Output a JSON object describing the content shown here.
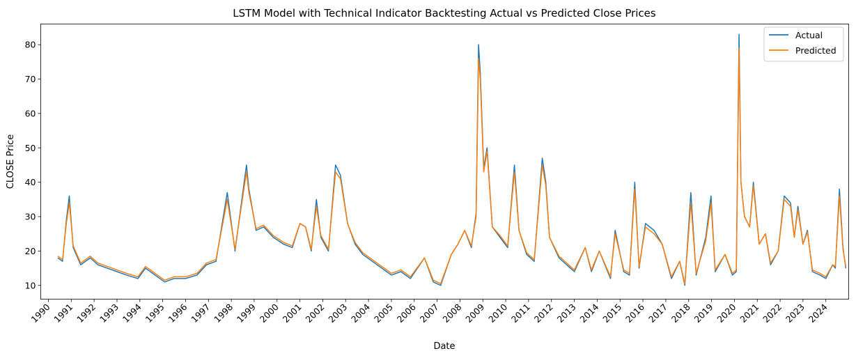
{
  "chart_data": {
    "type": "line",
    "title": "LSTM Model with Technical Indicator Backtesting Actual vs Predicted Close Prices",
    "xlabel": "Date",
    "ylabel": "CLOSE Price",
    "x_ticks": [
      "1990",
      "1991",
      "1992",
      "1993",
      "1994",
      "1995",
      "1996",
      "1997",
      "1998",
      "1999",
      "2000",
      "2001",
      "2002",
      "2003",
      "2004",
      "2005",
      "2006",
      "2007",
      "2008",
      "2009",
      "2010",
      "2011",
      "2012",
      "2013",
      "2014",
      "2015",
      "2016",
      "2017",
      "2018",
      "2019",
      "2020",
      "2021",
      "2022",
      "2023",
      "2024"
    ],
    "y_ticks": [
      10,
      20,
      30,
      40,
      50,
      60,
      70,
      80
    ],
    "xlim": [
      "1989-09-01",
      "2024-12-31"
    ],
    "ylim": [
      6,
      86
    ],
    "grid": false,
    "legend_position": "top-right",
    "x": [
      "1990-06-01",
      "1990-08-15",
      "1990-10-15",
      "1990-12-01",
      "1991-02-01",
      "1991-06-01",
      "1991-11-01",
      "1992-03-01",
      "1992-08-01",
      "1993-01-01",
      "1993-06-01",
      "1993-12-01",
      "1994-04-01",
      "1994-09-01",
      "1995-02-01",
      "1995-07-01",
      "1996-01-01",
      "1996-07-01",
      "1996-12-01",
      "1997-05-01",
      "1997-10-28",
      "1998-03-01",
      "1998-08-31",
      "1998-10-08",
      "1999-02-01",
      "1999-06-01",
      "1999-11-01",
      "2000-04-14",
      "2000-09-01",
      "2001-01-01",
      "2001-04-01",
      "2001-07-01",
      "2001-09-21",
      "2001-12-01",
      "2002-04-01",
      "2002-07-24",
      "2002-10-10",
      "2003-02-01",
      "2003-06-01",
      "2003-10-01",
      "2004-03-01",
      "2004-08-01",
      "2005-01-01",
      "2005-06-01",
      "2005-11-01",
      "2006-06-13",
      "2006-11-01",
      "2007-02-27",
      "2007-08-16",
      "2007-12-01",
      "2008-03-17",
      "2008-07-01",
      "2008-09-15",
      "2008-10-24",
      "2008-11-20",
      "2009-01-15",
      "2009-03-09",
      "2009-06-01",
      "2009-10-01",
      "2010-02-01",
      "2010-05-20",
      "2010-08-01",
      "2010-12-01",
      "2011-04-01",
      "2011-08-08",
      "2011-10-03",
      "2011-12-01",
      "2012-05-01",
      "2012-09-01",
      "2013-01-01",
      "2013-06-24",
      "2013-10-01",
      "2014-02-03",
      "2014-08-01",
      "2014-10-15",
      "2015-03-01",
      "2015-06-01",
      "2015-08-24",
      "2015-11-01",
      "2016-02-11",
      "2016-06-27",
      "2016-11-04",
      "2017-04-01",
      "2017-08-10",
      "2017-11-01",
      "2018-02-05",
      "2018-05-01",
      "2018-10-01",
      "2018-12-24",
      "2019-03-01",
      "2019-08-05",
      "2019-12-01",
      "2020-02-01",
      "2020-03-16",
      "2020-04-15",
      "2020-06-11",
      "2020-09-01",
      "2020-10-30",
      "2021-02-01",
      "2021-05-12",
      "2021-08-01",
      "2021-12-01",
      "2022-03-07",
      "2022-06-16",
      "2022-08-15",
      "2022-10-12",
      "2023-01-01",
      "2023-03-13",
      "2023-06-01",
      "2023-10-01",
      "2024-01-01",
      "2024-04-19",
      "2024-06-01",
      "2024-08-05",
      "2024-10-01",
      "2024-11-15"
    ],
    "series": [
      {
        "name": "Actual",
        "color": "#1f77b4",
        "values": [
          18,
          17,
          29,
          36,
          21,
          16,
          18,
          16,
          15,
          14,
          13,
          12,
          15,
          13,
          11,
          12,
          12,
          13,
          16,
          17,
          37,
          20,
          45,
          38,
          26,
          27,
          24,
          22,
          21,
          28,
          27,
          20,
          35,
          24,
          20,
          45,
          42,
          28,
          22,
          19,
          17,
          15,
          13,
          14,
          12,
          18,
          11,
          10,
          19,
          22,
          26,
          21,
          31,
          80,
          72,
          44,
          50,
          27,
          24,
          21,
          45,
          26,
          19,
          17,
          47,
          40,
          24,
          18,
          16,
          14,
          21,
          14,
          20,
          12,
          26,
          14,
          13,
          40,
          15,
          28,
          26,
          22,
          12,
          17,
          10,
          37,
          13,
          24,
          36,
          14,
          19,
          13,
          14,
          83,
          40,
          30,
          27,
          40,
          22,
          25,
          16,
          20,
          36,
          34,
          24,
          33,
          22,
          26,
          14,
          13,
          12,
          16,
          15,
          38,
          21,
          15
        ]
      },
      {
        "name": "Predicted",
        "color": "#ff7f0e",
        "values": [
          18.5,
          17.5,
          28,
          34,
          21.5,
          16.5,
          18.5,
          16.5,
          15.5,
          14.5,
          13.5,
          12.5,
          15.5,
          13.5,
          11.5,
          12.5,
          12.5,
          13.5,
          16.5,
          17.5,
          35,
          20.5,
          43,
          37,
          26.5,
          27.5,
          24.5,
          22.5,
          21.5,
          28,
          27,
          20.5,
          33,
          24.5,
          20.5,
          43,
          41,
          28,
          22.5,
          19.5,
          17.5,
          15.5,
          13.5,
          14.5,
          12.5,
          18,
          11.5,
          10.5,
          19,
          22,
          26,
          21.5,
          30,
          76,
          70,
          43,
          49,
          27,
          24.5,
          21.5,
          43,
          26,
          19.5,
          17.5,
          45,
          39,
          24,
          18.5,
          16.5,
          14.5,
          21,
          14.5,
          20,
          12.5,
          25,
          14.5,
          13.5,
          38,
          15.5,
          27,
          25,
          22,
          12.5,
          17,
          10.5,
          34,
          13.5,
          23,
          34,
          14.5,
          19,
          13.5,
          14.5,
          79,
          40,
          30,
          27,
          39,
          22,
          25,
          16.5,
          20,
          35,
          33,
          24,
          32,
          22,
          25.5,
          14.5,
          13.5,
          12.5,
          16,
          15.5,
          36,
          20.5,
          15.5
        ]
      }
    ]
  }
}
